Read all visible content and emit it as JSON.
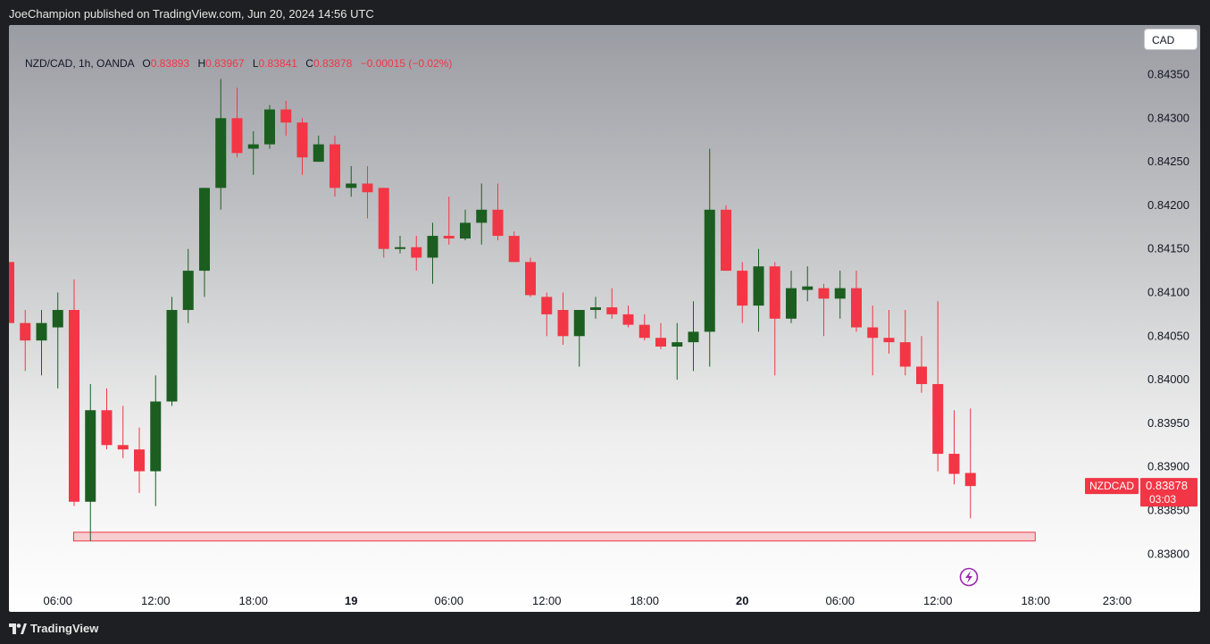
{
  "header": {
    "published_by": "JoeChampion published on TradingView.com, Jun 20, 2024 14:56 UTC"
  },
  "footer": {
    "brand": "TradingView"
  },
  "currency_button": "CAD",
  "legend": {
    "symbol": "NZD/CAD, 1h, OANDA",
    "o_label": "O",
    "o": "0.83893",
    "h_label": "H",
    "h": "0.83967",
    "l_label": "L",
    "l": "0.83841",
    "c_label": "C",
    "c": "0.83878",
    "change": "−0.00015 (−0.02%)"
  },
  "chart_data": {
    "type": "candlestick",
    "symbol": "NZDCAD",
    "price_tag": {
      "label": "NZDCAD",
      "price": "0.83878",
      "countdown": "03:03"
    },
    "ylim": [
      0.8376,
      0.8441
    ],
    "y_ticks": [
      "0.84350",
      "0.84300",
      "0.84250",
      "0.84200",
      "0.84150",
      "0.84100",
      "0.84050",
      "0.84000",
      "0.83950",
      "0.83900",
      "0.83850",
      "0.83800"
    ],
    "x_ticks": [
      {
        "label": "06:00",
        "i": 3,
        "bold": false
      },
      {
        "label": "12:00",
        "i": 9,
        "bold": false
      },
      {
        "label": "18:00",
        "i": 15,
        "bold": false
      },
      {
        "label": "19",
        "i": 21,
        "bold": true
      },
      {
        "label": "06:00",
        "i": 27,
        "bold": false
      },
      {
        "label": "12:00",
        "i": 33,
        "bold": false
      },
      {
        "label": "18:00",
        "i": 39,
        "bold": false
      },
      {
        "label": "20",
        "i": 45,
        "bold": true
      },
      {
        "label": "06:00",
        "i": 51,
        "bold": false
      },
      {
        "label": "12:00",
        "i": 57,
        "bold": false
      },
      {
        "label": "18:00",
        "i": 63,
        "bold": false
      },
      {
        "label": "23:00",
        "i": 68,
        "bold": false
      }
    ],
    "zone": {
      "from_i": 4,
      "to_i": 63,
      "low": 0.83815,
      "high": 0.83825
    },
    "candles": [
      [
        0.84135,
        0.84135,
        0.84065,
        0.84065
      ],
      [
        0.84065,
        0.8408,
        0.8401,
        0.84045
      ],
      [
        0.84045,
        0.8408,
        0.84005,
        0.84065
      ],
      [
        0.8406,
        0.841,
        0.8399,
        0.8408
      ],
      [
        0.8408,
        0.84115,
        0.83855,
        0.8386
      ],
      [
        0.8386,
        0.83995,
        0.83815,
        0.83965
      ],
      [
        0.83965,
        0.8399,
        0.8392,
        0.83925
      ],
      [
        0.83925,
        0.8397,
        0.8391,
        0.8392
      ],
      [
        0.8392,
        0.83945,
        0.8387,
        0.83895
      ],
      [
        0.83895,
        0.84005,
        0.83855,
        0.83975
      ],
      [
        0.83975,
        0.84095,
        0.8397,
        0.8408
      ],
      [
        0.8408,
        0.8415,
        0.84065,
        0.84125
      ],
      [
        0.84125,
        0.8422,
        0.84095,
        0.8422
      ],
      [
        0.8422,
        0.84345,
        0.84195,
        0.843
      ],
      [
        0.843,
        0.84335,
        0.84255,
        0.8426
      ],
      [
        0.84265,
        0.84285,
        0.84235,
        0.8427
      ],
      [
        0.8427,
        0.84315,
        0.84265,
        0.8431
      ],
      [
        0.8431,
        0.8432,
        0.8428,
        0.84295
      ],
      [
        0.84295,
        0.843,
        0.84235,
        0.84255
      ],
      [
        0.8425,
        0.8428,
        0.8425,
        0.8427
      ],
      [
        0.8427,
        0.8428,
        0.8421,
        0.8422
      ],
      [
        0.8422,
        0.84245,
        0.8421,
        0.84225
      ],
      [
        0.84225,
        0.84245,
        0.84185,
        0.84215
      ],
      [
        0.8422,
        0.8422,
        0.8414,
        0.8415
      ],
      [
        0.8415,
        0.84165,
        0.84145,
        0.84152
      ],
      [
        0.84152,
        0.84165,
        0.84125,
        0.8414
      ],
      [
        0.8414,
        0.8418,
        0.8411,
        0.84165
      ],
      [
        0.84165,
        0.8421,
        0.84155,
        0.84162
      ],
      [
        0.84162,
        0.84195,
        0.8416,
        0.8418
      ],
      [
        0.8418,
        0.84225,
        0.84155,
        0.84195
      ],
      [
        0.84195,
        0.84225,
        0.8416,
        0.84165
      ],
      [
        0.84165,
        0.8417,
        0.84135,
        0.84135
      ],
      [
        0.84135,
        0.8414,
        0.84095,
        0.84097
      ],
      [
        0.84095,
        0.841,
        0.8405,
        0.84075
      ],
      [
        0.8408,
        0.841,
        0.8404,
        0.8405
      ],
      [
        0.8405,
        0.8408,
        0.84015,
        0.8408
      ],
      [
        0.8408,
        0.84095,
        0.8407,
        0.84083
      ],
      [
        0.84083,
        0.84105,
        0.8407,
        0.84075
      ],
      [
        0.84075,
        0.84085,
        0.8406,
        0.84063
      ],
      [
        0.84063,
        0.84075,
        0.84045,
        0.84048
      ],
      [
        0.84048,
        0.84065,
        0.84035,
        0.84038
      ],
      [
        0.84038,
        0.84065,
        0.84,
        0.84043
      ],
      [
        0.84043,
        0.8409,
        0.8401,
        0.84055
      ],
      [
        0.84055,
        0.84265,
        0.84015,
        0.84195
      ],
      [
        0.84195,
        0.842,
        0.84125,
        0.84125
      ],
      [
        0.84125,
        0.84135,
        0.84065,
        0.84085
      ],
      [
        0.84085,
        0.8415,
        0.84055,
        0.8413
      ],
      [
        0.8413,
        0.84135,
        0.84005,
        0.8407
      ],
      [
        0.8407,
        0.84125,
        0.84065,
        0.84105
      ],
      [
        0.84103,
        0.8413,
        0.8409,
        0.84107
      ],
      [
        0.84105,
        0.8411,
        0.8405,
        0.84093
      ],
      [
        0.84093,
        0.84125,
        0.8407,
        0.84105
      ],
      [
        0.84105,
        0.84125,
        0.84055,
        0.8406
      ],
      [
        0.8406,
        0.84085,
        0.84005,
        0.84048
      ],
      [
        0.84048,
        0.8408,
        0.8403,
        0.84043
      ],
      [
        0.84043,
        0.8408,
        0.84005,
        0.84015
      ],
      [
        0.84015,
        0.8405,
        0.83985,
        0.83995
      ],
      [
        0.83995,
        0.8409,
        0.83895,
        0.83915
      ],
      [
        0.83915,
        0.83965,
        0.8388,
        0.83892
      ],
      [
        0.83893,
        0.83967,
        0.83841,
        0.83878
      ]
    ]
  }
}
